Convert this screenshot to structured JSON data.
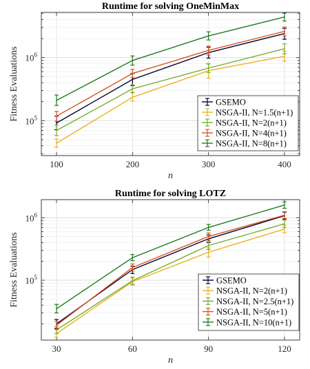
{
  "chart_data": [
    {
      "type": "line",
      "title": "Runtime for solving OneMinMax",
      "xlabel": "n",
      "ylabel": "Fitness Evaluations",
      "x": [
        100,
        200,
        300,
        400
      ],
      "x_ticks": [
        "100",
        "200",
        "300",
        "400"
      ],
      "xlim": [
        80,
        420
      ],
      "y_scale": "log",
      "ylim": [
        28000,
        5200000
      ],
      "y_ticks": [
        {
          "value": 100000,
          "base": "10",
          "exp": "5"
        },
        {
          "value": 1000000,
          "base": "10",
          "exp": "6"
        }
      ],
      "grid": true,
      "legend_position": "bottom-right",
      "series": [
        {
          "name": "GSEMO",
          "color": "#000033",
          "values": [
            92000,
            450000,
            1200000,
            2400000
          ],
          "err_low": [
            72000,
            360000,
            980000,
            1950000
          ],
          "err_high": [
            118000,
            560000,
            1460000,
            2900000
          ]
        },
        {
          "name": "NSGA-II, N=1.5(n+1)",
          "color": "#ecb01f",
          "values": [
            44000,
            235000,
            620000,
            1050000
          ],
          "err_low": [
            38000,
            205000,
            470000,
            870000
          ],
          "err_high": [
            51000,
            275000,
            810000,
            1260000
          ]
        },
        {
          "name": "NSGA-II, N=2(n+1)",
          "color": "#77ac30",
          "values": [
            70000,
            320000,
            680000,
            1380000
          ],
          "err_low": [
            58000,
            280000,
            580000,
            1150000
          ],
          "err_high": [
            85000,
            370000,
            790000,
            1650000
          ]
        },
        {
          "name": "NSGA-II, N=4(n+1)",
          "color": "#d95319",
          "values": [
            118000,
            560000,
            1300000,
            2600000
          ],
          "err_low": [
            98000,
            480000,
            1100000,
            2200000
          ],
          "err_high": [
            140000,
            650000,
            1520000,
            3050000
          ]
        },
        {
          "name": "NSGA-II, N=8(n+1)",
          "color": "#1e7a1e",
          "values": [
            210000,
            900000,
            2200000,
            4400000
          ],
          "err_low": [
            175000,
            760000,
            1900000,
            3800000
          ],
          "err_high": [
            255000,
            1060000,
            2560000,
            5050000
          ]
        }
      ]
    },
    {
      "type": "line",
      "title": "Runtime for solving LOTZ",
      "xlabel": "n",
      "ylabel": "Fitness Evaluations",
      "x": [
        30,
        60,
        90,
        120
      ],
      "x_ticks": [
        "30",
        "60",
        "90",
        "120"
      ],
      "xlim": [
        24,
        126
      ],
      "y_scale": "log",
      "ylim": [
        11000,
        1950000
      ],
      "y_ticks": [
        {
          "value": 100000,
          "base": "10",
          "exp": "5"
        },
        {
          "value": 1000000,
          "base": "10",
          "exp": "6"
        }
      ],
      "grid": true,
      "legend_position": "bottom-right",
      "series": [
        {
          "name": "GSEMO",
          "color": "#000033",
          "values": [
            20000,
            148000,
            460000,
            1080000
          ],
          "err_low": [
            17000,
            128000,
            400000,
            950000
          ],
          "err_high": [
            23500,
            168000,
            530000,
            1230000
          ]
        },
        {
          "name": "NSGA-II, N=2(n+1)",
          "color": "#ecb01f",
          "values": [
            14000,
            95000,
            280000,
            660000
          ],
          "err_low": [
            12200,
            83000,
            235000,
            575000
          ],
          "err_high": [
            16000,
            108000,
            330000,
            760000
          ]
        },
        {
          "name": "NSGA-II, N=2.5(n+1)",
          "color": "#77ac30",
          "values": [
            16000,
            98000,
            360000,
            800000
          ],
          "err_low": [
            14000,
            86000,
            310000,
            700000
          ],
          "err_high": [
            18300,
            112000,
            420000,
            910000
          ]
        },
        {
          "name": "NSGA-II, N=5(n+1)",
          "color": "#d95319",
          "values": [
            19000,
            160000,
            500000,
            1100000
          ],
          "err_low": [
            16500,
            140000,
            440000,
            970000
          ],
          "err_high": [
            22000,
            182000,
            570000,
            1250000
          ]
        },
        {
          "name": "NSGA-II, N=10(n+1)",
          "color": "#1e7a1e",
          "values": [
            35000,
            230000,
            700000,
            1600000
          ],
          "err_low": [
            30000,
            205000,
            630000,
            1420000
          ],
          "err_high": [
            41000,
            258000,
            780000,
            1800000
          ]
        }
      ]
    }
  ]
}
